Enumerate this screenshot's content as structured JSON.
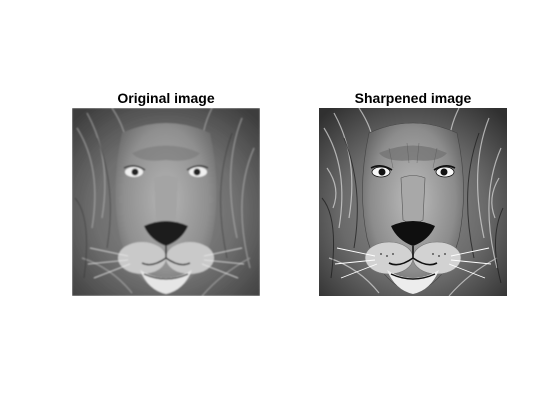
{
  "figure": {
    "background": "#ffffff",
    "panels": [
      {
        "title": "Original image",
        "image": "grayscale lion face photo",
        "style": "soft"
      },
      {
        "title": "Sharpened image",
        "image": "grayscale lion face photo",
        "style": "sharpened"
      }
    ]
  }
}
